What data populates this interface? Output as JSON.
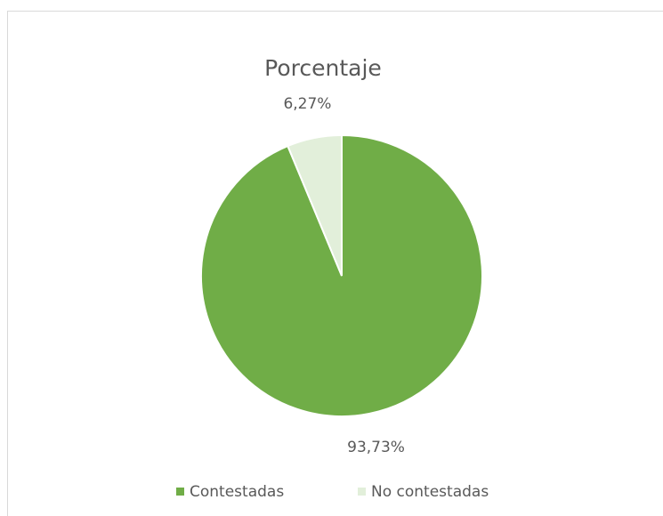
{
  "chart_data": {
    "type": "pie",
    "title": "Porcentaje",
    "categories": [
      "Contestadas",
      "No contestadas"
    ],
    "values": [
      93.73,
      6.27
    ],
    "value_labels": [
      "93,73%",
      "6,27%"
    ],
    "colors": [
      "#70ad47",
      "#e2efda"
    ],
    "legend": "bottom"
  }
}
